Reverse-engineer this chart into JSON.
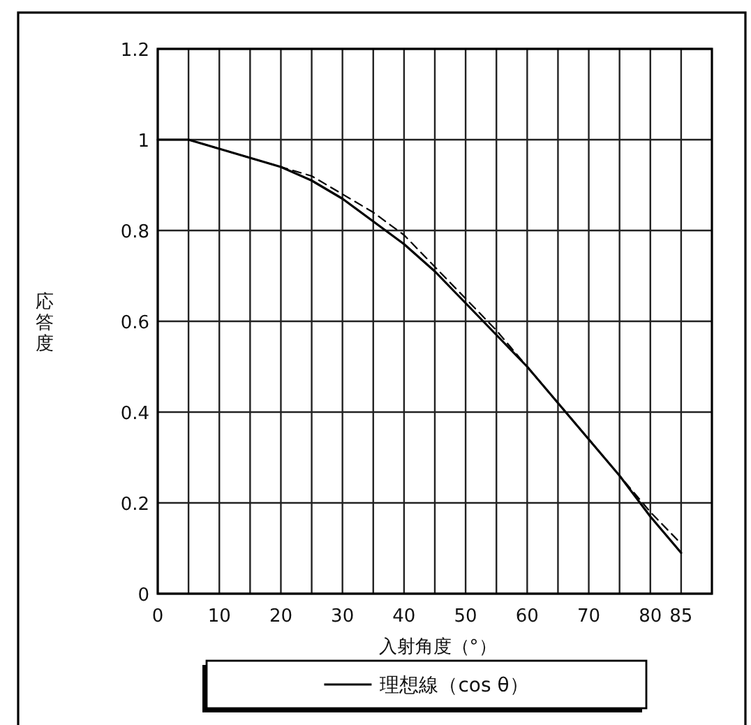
{
  "chart_data": {
    "type": "line",
    "xlabel": "入射角度（°）",
    "ylabel": "応答度",
    "x": [
      0,
      5,
      10,
      15,
      20,
      25,
      30,
      35,
      40,
      45,
      50,
      55,
      60,
      65,
      70,
      75,
      80,
      85
    ],
    "series": [
      {
        "name": "理想線（cos θ）",
        "color": "#000000",
        "line_style": "solid",
        "values": [
          1.0,
          1.0,
          0.98,
          0.96,
          0.94,
          0.91,
          0.87,
          0.82,
          0.77,
          0.71,
          0.64,
          0.57,
          0.5,
          0.42,
          0.34,
          0.26,
          0.17,
          0.09
        ]
      },
      {
        "color": "#000000",
        "line_style": "dashed",
        "values": [
          1.0,
          1.0,
          0.98,
          0.96,
          0.94,
          0.92,
          0.88,
          0.84,
          0.79,
          0.72,
          0.65,
          0.58,
          0.5,
          0.42,
          0.34,
          0.26,
          0.18,
          0.11
        ]
      }
    ],
    "xlim": [
      0,
      90
    ],
    "ylim": [
      0,
      1.2
    ],
    "xticks": [
      0,
      {
        "value": 5,
        "label": null
      },
      10,
      {
        "value": 15,
        "label": null
      },
      20,
      {
        "value": 25,
        "label": null
      },
      30,
      {
        "value": 35,
        "label": null
      },
      40,
      {
        "value": 45,
        "label": null
      },
      50,
      {
        "value": 55,
        "label": null
      },
      60,
      {
        "value": 65,
        "label": null
      },
      70,
      {
        "value": 75,
        "label": null
      },
      80,
      85
    ],
    "yticks": [
      0,
      0.2,
      0.4,
      0.6,
      0.8,
      1,
      1.2
    ],
    "grid": true,
    "legend": "bottom"
  }
}
